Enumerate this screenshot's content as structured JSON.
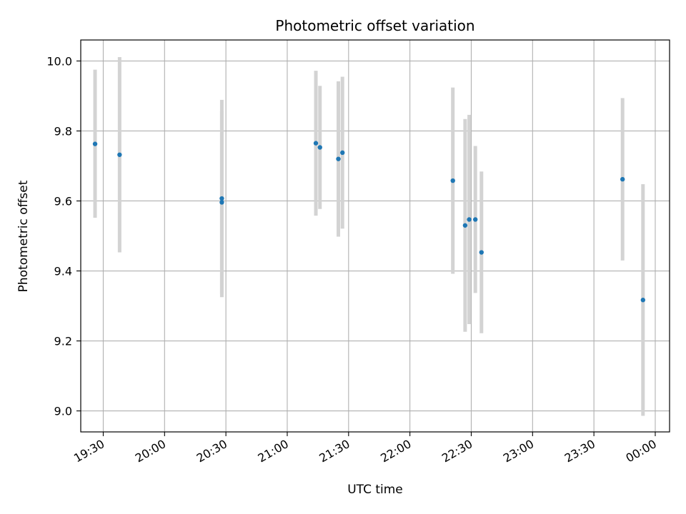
{
  "chart_data": {
    "type": "scatter",
    "title": "Photometric offset variation",
    "xlabel": "UTC time",
    "ylabel": "Photometric offset",
    "grid": true,
    "x_ticks": [
      "19:30",
      "20:00",
      "20:30",
      "21:00",
      "21:30",
      "22:00",
      "22:30",
      "23:00",
      "23:30",
      "00:00"
    ],
    "y_ticks": [
      "9.0",
      "9.2",
      "9.4",
      "9.6",
      "9.8",
      "10.0"
    ],
    "xlim": [
      "19:19",
      "00:07"
    ],
    "ylim": [
      8.94,
      10.06
    ],
    "colors": {
      "point": "#1f77b4",
      "errorbar": "#d3d3d3",
      "grid": "#b0b0b0"
    },
    "points": [
      {
        "time": "19:26",
        "y": 9.763,
        "low": 9.552,
        "high": 9.975
      },
      {
        "time": "19:38",
        "y": 9.732,
        "low": 9.453,
        "high": 10.011
      },
      {
        "time": "20:28",
        "y": 9.607,
        "low": 9.325,
        "high": 9.889
      },
      {
        "time": "20:28",
        "y": 9.596,
        "low": 9.335,
        "high": 9.857
      },
      {
        "time": "21:14",
        "y": 9.765,
        "low": 9.558,
        "high": 9.972
      },
      {
        "time": "21:16",
        "y": 9.753,
        "low": 9.577,
        "high": 9.929
      },
      {
        "time": "21:25",
        "y": 9.72,
        "low": 9.498,
        "high": 9.942
      },
      {
        "time": "21:27",
        "y": 9.738,
        "low": 9.521,
        "high": 9.955
      },
      {
        "time": "22:21",
        "y": 9.658,
        "low": 9.392,
        "high": 9.924
      },
      {
        "time": "22:27",
        "y": 9.53,
        "low": 9.226,
        "high": 9.834
      },
      {
        "time": "22:29",
        "y": 9.547,
        "low": 9.248,
        "high": 9.846
      },
      {
        "time": "22:32",
        "y": 9.547,
        "low": 9.337,
        "high": 9.757
      },
      {
        "time": "22:35",
        "y": 9.453,
        "low": 9.222,
        "high": 9.684
      },
      {
        "time": "23:44",
        "y": 9.662,
        "low": 9.43,
        "high": 9.894
      },
      {
        "time": "23:54",
        "y": 9.317,
        "low": 8.986,
        "high": 9.648
      }
    ]
  }
}
